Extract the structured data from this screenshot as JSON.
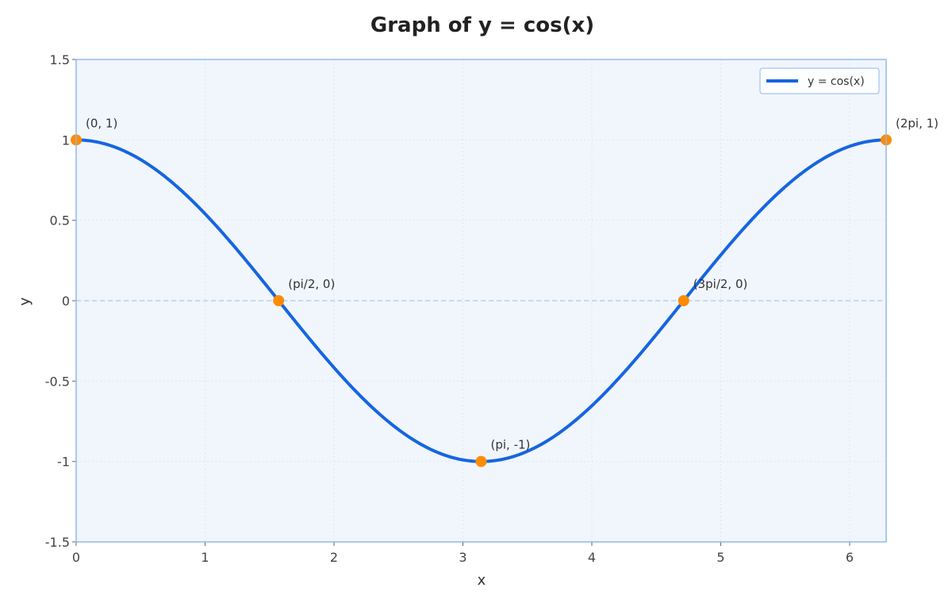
{
  "chart_data": {
    "type": "line",
    "title": "Graph of y = cos(x)",
    "xlabel": "x",
    "ylabel": "y",
    "xlim": [
      0,
      6.283185
    ],
    "ylim": [
      -1.5,
      1.5
    ],
    "xticks": [
      0,
      1,
      2,
      3,
      4,
      5,
      6
    ],
    "xtick_labels": [
      "0",
      "1",
      "2",
      "3",
      "4",
      "5",
      "6"
    ],
    "yticks": [
      -1.5,
      -1,
      -0.5,
      0,
      0.5,
      1,
      1.5
    ],
    "ytick_labels": [
      "-1.5",
      "-1",
      "-0.5",
      "0",
      "0.5",
      "1",
      "1.5"
    ],
    "grid": true,
    "legend_position": "top-right",
    "series": [
      {
        "name": "y = cos(x)",
        "function": "cos",
        "x_start": 0,
        "x_end": 6.283185,
        "color": "#1565e0"
      }
    ],
    "annotations": [
      {
        "x": 0,
        "y": 1,
        "label": "(0, 1)"
      },
      {
        "x": 1.570796,
        "y": 0,
        "label": "(pi/2, 0)"
      },
      {
        "x": 3.141593,
        "y": -1,
        "label": "(pi, -1)"
      },
      {
        "x": 4.712389,
        "y": 0,
        "label": "(3pi/2, 0)"
      },
      {
        "x": 6.283185,
        "y": 1,
        "label": "(2pi, 1)"
      }
    ],
    "colors": {
      "line": "#1565e0",
      "points": "#ff8c00",
      "plot_background": "#f1f6fd",
      "frame": "#90b8ee",
      "zero_line": "#b7d0f2",
      "grid": "#dbe6f5"
    }
  }
}
